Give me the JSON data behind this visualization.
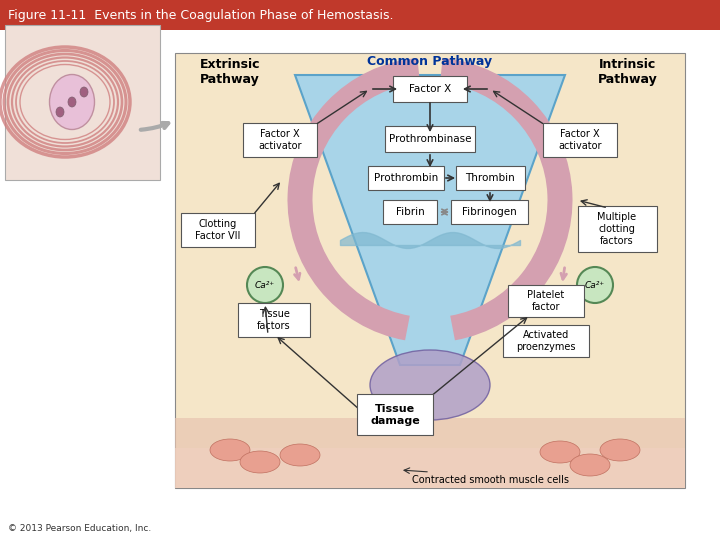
{
  "title": "Figure 11-11  Events in the Coagulation Phase of Hemostasis.",
  "title_fontsize": 9,
  "title_color": "#000000",
  "title_bar_color": "#c0392b",
  "bg_color": "#ffffff",
  "diagram_bg": "#f5e6c8",
  "common_pathway_bg": "#a8d4e8",
  "footer": "© 2013 Pearson Education, Inc.",
  "labels": {
    "extrinsic": "Extrinsic\nPathway",
    "common": "Common Pathway",
    "intrinsic": "Intrinsic\nPathway",
    "factor_x": "Factor X",
    "prothrombinase": "Prothrombinase",
    "factor_x_activator_left": "Factor X\nactivator",
    "factor_x_activator_right": "Factor X\nactivator",
    "prothrombin": "Prothrombin",
    "thrombin": "Thrombin",
    "fibrin": "Fibrin",
    "fibrinogen": "Fibrinogen",
    "clotting_factor": "Clotting\nFactor VII",
    "multiple_clotting": "Multiple\nclotting\nfactors",
    "ca_left": "Ca²⁺",
    "ca_right": "Ca²⁺",
    "tissue_factors": "Tissue\nfactors",
    "platelet_factor": "Platelet\nfactor",
    "activated_proenzymes": "Activated\nproenzymes",
    "tissue_damage": "Tissue\ndamage",
    "contracted": "Contracted smooth muscle cells"
  }
}
